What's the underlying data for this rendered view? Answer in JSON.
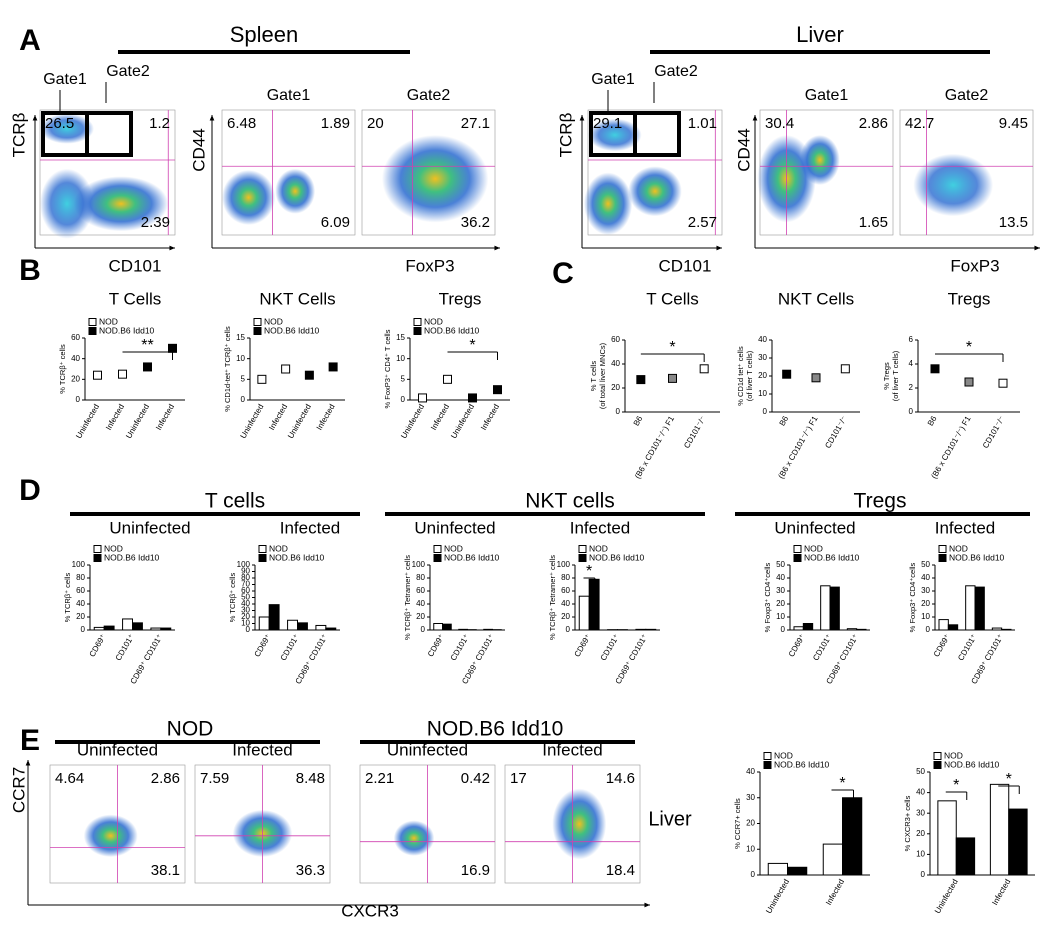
{
  "panel_labels": [
    "A",
    "B",
    "C",
    "D",
    "E"
  ],
  "headers": [
    "Spleen",
    "Liver",
    "T cells",
    "NKT cells",
    "Tregs",
    "NOD",
    "NOD.B6 Idd10"
  ],
  "subheaders": [
    "Uninfected",
    "Infected",
    "Uninfected",
    "Infected",
    "Uninfected",
    "Infected"
  ],
  "gate_labels": [
    "Gate1",
    "Gate2",
    "Gate1",
    "Gate2"
  ],
  "axis_labels": [
    "TCRβ",
    "CD101",
    "CD44",
    "FoxP3",
    "TCRβ",
    "CD101",
    "CD44",
    "FoxP3",
    "CCR7",
    "CXCR3"
  ],
  "side_label": "Liver",
  "flow_plots": [
    {
      "quadrants": [
        26.5,
        1.2,
        2.39
      ]
    },
    {
      "title": "Gate1",
      "quadrants": [
        6.48,
        1.89,
        6.09
      ]
    },
    {
      "title": "Gate2",
      "quadrants": [
        20,
        27.1,
        36.2
      ]
    },
    {
      "quadrants": [
        29.1,
        1.01,
        2.57
      ]
    },
    {
      "title": "Gate1",
      "quadrants": [
        30.4,
        2.86,
        1.65
      ]
    },
    {
      "title": "Gate2",
      "quadrants": [
        42.7,
        9.45,
        13.5
      ]
    },
    {
      "title": "Uninfected",
      "quadrants": [
        4.64,
        2.86,
        38.1
      ]
    },
    {
      "title": "Infected",
      "quadrants": [
        7.59,
        8.48,
        36.3
      ]
    },
    {
      "title": "Uninfected",
      "quadrants": [
        2.21,
        0.42,
        16.9
      ]
    },
    {
      "title": "Infected",
      "quadrants": [
        17,
        14.6,
        18.4
      ]
    }
  ],
  "chart_data": [
    {
      "type": "dot",
      "title": "T Cells",
      "ylabel": [
        "% TCRβ⁺ cells"
      ],
      "categories": [
        "Uninfected",
        "Infected",
        "Uninfected",
        "Infected"
      ],
      "series": [
        {
          "name": "NOD",
          "color": "#ffffff",
          "values": [
            24,
            25,
            null,
            null
          ]
        },
        {
          "name": "NOD.B6 Idd10",
          "color": "#000000",
          "values": [
            null,
            null,
            32,
            50
          ]
        }
      ],
      "ylim": [
        0,
        60
      ],
      "yticks": [
        0,
        20,
        40,
        60
      ],
      "annotations": [
        "**"
      ]
    },
    {
      "type": "dot",
      "title": "NKT Cells",
      "ylabel": [
        "% CD1d-tet⁺ TCRβ⁺ cells"
      ],
      "categories": [
        "Uninfected",
        "Infected",
        "Uninfected",
        "Infected"
      ],
      "series": [
        {
          "name": "NOD",
          "color": "#ffffff",
          "values": [
            5,
            7.5,
            null,
            null
          ]
        },
        {
          "name": "NOD.B6 Idd10",
          "color": "#000000",
          "values": [
            null,
            null,
            6,
            8
          ]
        }
      ],
      "ylim": [
        0,
        15
      ],
      "yticks": [
        0,
        5,
        10,
        15
      ]
    },
    {
      "type": "dot",
      "title": "Tregs",
      "ylabel": [
        "% FoxP3⁺ CD4⁺ T cells"
      ],
      "categories": [
        "Uninfected",
        "Infected",
        "Uninfected",
        "Infected"
      ],
      "series": [
        {
          "name": "NOD",
          "color": "#ffffff",
          "values": [
            0.5,
            5,
            null,
            null
          ]
        },
        {
          "name": "NOD.B6 Idd10",
          "color": "#000000",
          "values": [
            null,
            null,
            0.5,
            2.5
          ]
        }
      ],
      "ylim": [
        0,
        15
      ],
      "yticks": [
        0,
        5,
        10,
        15
      ],
      "annotations": [
        "*"
      ]
    },
    {
      "type": "scatter",
      "title": "T Cells",
      "ylabel": [
        "% T cells",
        "(of total liver MNCs)"
      ],
      "categories": [
        "B6",
        "(B6 x CD101⁻/⁻) F1",
        "CD101⁻/⁻"
      ],
      "values": [
        27,
        28,
        36
      ],
      "colors": [
        "#000000",
        "#888888",
        "#ffffff"
      ],
      "ylim": [
        0,
        60
      ],
      "yticks": [
        0,
        20,
        40,
        60
      ],
      "annotations": [
        "*"
      ]
    },
    {
      "type": "scatter",
      "title": "NKT Cells",
      "ylabel": [
        "% CD1d tet⁺ cells",
        "(of liver T cells)"
      ],
      "categories": [
        "B6",
        "(B6 x CD101⁻/⁻) F1",
        "CD101⁻/⁻"
      ],
      "values": [
        21,
        19,
        24
      ],
      "colors": [
        "#000000",
        "#888888",
        "#ffffff"
      ],
      "ylim": [
        0,
        40
      ],
      "yticks": [
        0,
        10,
        20,
        30,
        40
      ]
    },
    {
      "type": "scatter",
      "title": "Tregs",
      "ylabel": [
        "% Tregs",
        "(of liver T cells)"
      ],
      "categories": [
        "B6",
        "(B6 x CD101⁻/⁻) F1",
        "CD101⁻/⁻"
      ],
      "values": [
        3.6,
        2.5,
        2.4
      ],
      "colors": [
        "#000000",
        "#888888",
        "#ffffff"
      ],
      "ylim": [
        0,
        6
      ],
      "yticks": [
        0,
        2,
        4,
        6
      ],
      "annotations": [
        "*"
      ]
    },
    {
      "type": "bar",
      "ylabel": [
        "% TCRβ⁺ cells"
      ],
      "categories": [
        "CD69⁺",
        "CD101⁺",
        "CD69⁺ CD101⁺"
      ],
      "series": [
        {
          "name": "NOD",
          "color": "#ffffff",
          "values": [
            4,
            17,
            3
          ]
        },
        {
          "name": "NOD.B6 Idd10",
          "color": "#000000",
          "values": [
            6,
            11,
            3
          ]
        }
      ],
      "ylim": [
        0,
        100
      ],
      "yticks": [
        0,
        20,
        40,
        60,
        80,
        100
      ]
    },
    {
      "type": "bar",
      "ylabel": [
        "% TCRβ⁺ cells"
      ],
      "categories": [
        "CD69⁺",
        "CD101⁺",
        "CD69⁺ CD101⁺"
      ],
      "series": [
        {
          "name": "NOD",
          "color": "#ffffff",
          "values": [
            20,
            15,
            7
          ]
        },
        {
          "name": "NOD.B6 Idd10",
          "color": "#000000",
          "values": [
            39,
            11,
            3
          ]
        }
      ],
      "ylim": [
        0,
        100
      ],
      "yticks": [
        0,
        10,
        20,
        30,
        40,
        50,
        60,
        70,
        80,
        90,
        100
      ]
    },
    {
      "type": "bar",
      "ylabel": [
        "% TCRβ⁺ Tetramer⁺ cells"
      ],
      "categories": [
        "CD69⁺",
        "CD101⁺",
        "CD69⁺ CD101⁺"
      ],
      "series": [
        {
          "name": "NOD",
          "color": "#ffffff",
          "values": [
            10,
            1,
            1
          ]
        },
        {
          "name": "NOD.B6 Idd10",
          "color": "#000000",
          "values": [
            9,
            0.5,
            0.5
          ]
        }
      ],
      "ylim": [
        0,
        100
      ],
      "yticks": [
        0,
        20,
        40,
        60,
        80,
        100
      ]
    },
    {
      "type": "bar",
      "ylabel": [
        "% TCRβ⁺ Tetramer⁺ cells"
      ],
      "categories": [
        "CD69⁺",
        "CD101⁺",
        "CD69⁺ CD101⁺"
      ],
      "series": [
        {
          "name": "NOD",
          "color": "#ffffff",
          "values": [
            52,
            0.5,
            1
          ]
        },
        {
          "name": "NOD.B6 Idd10",
          "color": "#000000",
          "values": [
            78,
            0.5,
            1
          ]
        }
      ],
      "ylim": [
        0,
        100
      ],
      "yticks": [
        0,
        20,
        40,
        60,
        80,
        100
      ],
      "annotations": [
        "*"
      ]
    },
    {
      "type": "bar",
      "ylabel": [
        "% Foxp3⁺ CD4⁺cells"
      ],
      "categories": [
        "CD69⁺",
        "CD101⁺",
        "CD69⁺ CD101⁺"
      ],
      "series": [
        {
          "name": "NOD",
          "color": "#ffffff",
          "values": [
            2.5,
            34,
            1
          ]
        },
        {
          "name": "NOD.B6 Idd10",
          "color": "#000000",
          "values": [
            5,
            33,
            0.5
          ]
        }
      ],
      "ylim": [
        0,
        50
      ],
      "yticks": [
        0,
        10,
        20,
        30,
        40,
        50
      ]
    },
    {
      "type": "bar",
      "ylabel": [
        "% Foxp3⁺ CD4⁺cells"
      ],
      "categories": [
        "CD69⁺",
        "CD101⁺",
        "CD69⁺ CD101⁺"
      ],
      "series": [
        {
          "name": "NOD",
          "color": "#ffffff",
          "values": [
            8,
            34,
            1.5
          ]
        },
        {
          "name": "NOD.B6 Idd10",
          "color": "#000000",
          "values": [
            4,
            33,
            0.5
          ]
        }
      ],
      "ylim": [
        0,
        50
      ],
      "yticks": [
        0,
        10,
        20,
        30,
        40,
        50
      ]
    },
    {
      "type": "bar",
      "ylabel": [
        "% CCR7+ cells"
      ],
      "categories": [
        "Uninfected",
        "Infected"
      ],
      "series": [
        {
          "name": "NOD",
          "color": "#ffffff",
          "values": [
            4.5,
            12
          ]
        },
        {
          "name": "NOD.B6 Idd10",
          "color": "#000000",
          "values": [
            3,
            30
          ]
        }
      ],
      "ylim": [
        0,
        40
      ],
      "yticks": [
        0,
        10,
        20,
        30,
        40
      ],
      "annotations": [
        "*"
      ]
    },
    {
      "type": "bar",
      "ylabel": [
        "% CXCR3+ cells"
      ],
      "categories": [
        "Uninfected",
        "Infected"
      ],
      "series": [
        {
          "name": "NOD",
          "color": "#ffffff",
          "values": [
            36,
            44
          ]
        },
        {
          "name": "NOD.B6 Idd10",
          "color": "#000000",
          "values": [
            18,
            32
          ]
        }
      ],
      "ylim": [
        0,
        50
      ],
      "yticks": [
        0,
        10,
        20,
        30,
        40,
        50
      ],
      "annotations": [
        "*",
        "*"
      ]
    }
  ]
}
